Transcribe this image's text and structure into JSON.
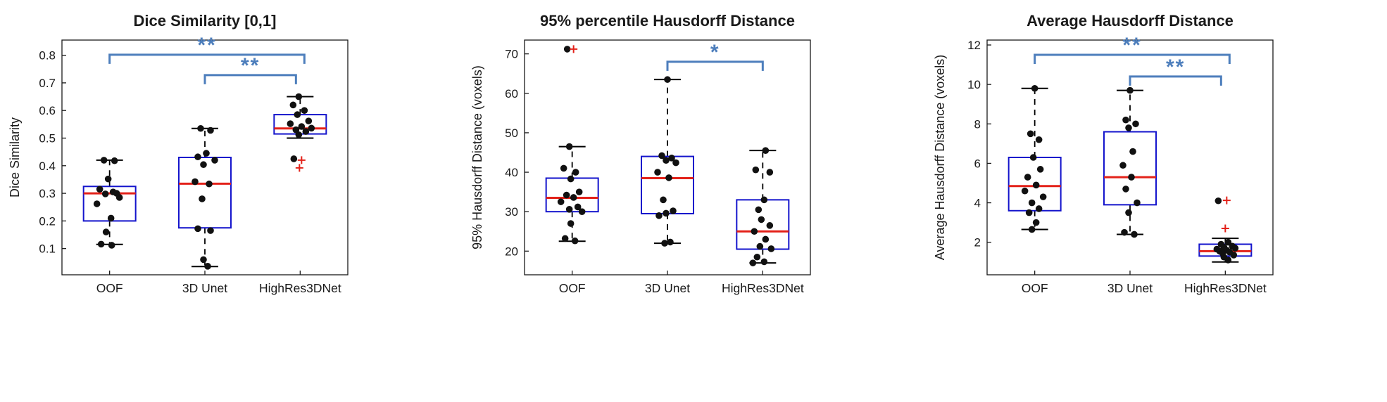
{
  "figure": {
    "background": "#ffffff"
  },
  "colors": {
    "box": "#1414cc",
    "median": "#e32119",
    "whisker": "#000000",
    "cap": "#000000",
    "point": "#111111",
    "outlier": "#e32119",
    "significance": "#4d7ebc",
    "axis": "#1a1a1a",
    "text": "#1a1a1a"
  },
  "chart_data": [
    {
      "type": "boxplot",
      "title": "Dice Similarity [0,1]",
      "ylabel": "Dice Similarity",
      "categories": [
        "OOF",
        "3D Unet",
        "HighRes3DNet"
      ],
      "ylim": [
        0.005,
        0.855
      ],
      "yticks": [
        0.1,
        0.2,
        0.3,
        0.4,
        0.5,
        0.6,
        0.7,
        0.8
      ],
      "ytick_labels": [
        "0.1",
        "0.2",
        "0.3",
        "0.4",
        "0.5",
        "0.6",
        "0.7",
        "0.8"
      ],
      "grid": false,
      "legend": "none",
      "boxes": [
        {
          "label": "OOF",
          "whislo": 0.115,
          "q1": 0.2,
          "med": 0.3,
          "q3": 0.325,
          "whishi": 0.42,
          "points": [
            [
              -8,
              0.42
            ],
            [
              7,
              0.418
            ],
            [
              -2,
              0.352
            ],
            [
              -14,
              0.315
            ],
            [
              5,
              0.305
            ],
            [
              -6,
              0.298
            ],
            [
              14,
              0.285
            ],
            [
              10,
              0.3
            ],
            [
              -18,
              0.262
            ],
            [
              2,
              0.21
            ],
            [
              -5,
              0.16
            ],
            [
              -12,
              0.116
            ],
            [
              3,
              0.112
            ]
          ],
          "outliers": []
        },
        {
          "label": "3D Unet",
          "whislo": 0.035,
          "q1": 0.175,
          "med": 0.335,
          "q3": 0.43,
          "whishi": 0.535,
          "points": [
            [
              -6,
              0.535
            ],
            [
              8,
              0.528
            ],
            [
              2,
              0.445
            ],
            [
              -10,
              0.432
            ],
            [
              14,
              0.42
            ],
            [
              -2,
              0.404
            ],
            [
              -14,
              0.342
            ],
            [
              6,
              0.334
            ],
            [
              -4,
              0.28
            ],
            [
              -10,
              0.172
            ],
            [
              8,
              0.165
            ],
            [
              -2,
              0.06
            ],
            [
              4,
              0.036
            ]
          ],
          "outliers": []
        },
        {
          "label": "HighRes3DNet",
          "whislo": 0.5,
          "q1": 0.515,
          "med": 0.535,
          "q3": 0.585,
          "whishi": 0.65,
          "points": [
            [
              -2,
              0.65
            ],
            [
              -10,
              0.62
            ],
            [
              6,
              0.6
            ],
            [
              -4,
              0.585
            ],
            [
              12,
              0.562
            ],
            [
              -14,
              0.552
            ],
            [
              2,
              0.542
            ],
            [
              16,
              0.536
            ],
            [
              -6,
              0.53
            ],
            [
              8,
              0.524
            ],
            [
              -2,
              0.512
            ],
            [
              -9,
              0.425
            ]
          ],
          "outliers": [
            [
              2,
              0.42
            ],
            [
              -1,
              0.392
            ]
          ]
        }
      ],
      "brackets": [
        {
          "from": 0,
          "to": 2,
          "to_off": 6,
          "y": 0.802,
          "label": "**"
        },
        {
          "from": 1,
          "to": 2,
          "to_off": -6,
          "y": 0.728,
          "label": "**"
        }
      ]
    },
    {
      "type": "boxplot",
      "title": "95% percentile Hausdorff Distance",
      "ylabel": "95% Hausdorff Distance (voxels)",
      "categories": [
        "OOF",
        "3D Unet",
        "HighRes3DNet"
      ],
      "ylim": [
        14,
        73.5
      ],
      "yticks": [
        20,
        30,
        40,
        50,
        60,
        70
      ],
      "ytick_labels": [
        "20",
        "30",
        "40",
        "50",
        "60",
        "70"
      ],
      "grid": false,
      "legend": "none",
      "boxes": [
        {
          "label": "OOF",
          "whislo": 22.5,
          "q1": 30.0,
          "med": 33.5,
          "q3": 38.5,
          "whishi": 46.5,
          "points": [
            [
              -7,
              71.2
            ],
            [
              -4,
              46.5
            ],
            [
              -12,
              41.0
            ],
            [
              5,
              40.0
            ],
            [
              -2,
              38.3
            ],
            [
              10,
              35.0
            ],
            [
              -8,
              34.2
            ],
            [
              2,
              33.6
            ],
            [
              -16,
              32.5
            ],
            [
              8,
              31.2
            ],
            [
              -4,
              30.6
            ],
            [
              14,
              30.0
            ],
            [
              -2,
              27.0
            ],
            [
              -10,
              23.2
            ],
            [
              4,
              22.6
            ]
          ],
          "outliers": [
            [
              2,
              71.2
            ]
          ]
        },
        {
          "label": "3D Unet",
          "whislo": 22.0,
          "q1": 29.5,
          "med": 38.5,
          "q3": 44.0,
          "whishi": 63.5,
          "points": [
            [
              0,
              63.5
            ],
            [
              -8,
              44.2
            ],
            [
              6,
              43.6
            ],
            [
              -2,
              43.0
            ],
            [
              12,
              42.4
            ],
            [
              -14,
              40.0
            ],
            [
              2,
              38.6
            ],
            [
              -6,
              33.0
            ],
            [
              8,
              30.2
            ],
            [
              -2,
              29.6
            ],
            [
              -12,
              29.0
            ],
            [
              4,
              22.3
            ],
            [
              -4,
              22.0
            ]
          ],
          "outliers": []
        },
        {
          "label": "HighRes3DNet",
          "whislo": 17.0,
          "q1": 20.5,
          "med": 25.0,
          "q3": 33.0,
          "whishi": 45.5,
          "points": [
            [
              4,
              45.5
            ],
            [
              -10,
              40.6
            ],
            [
              10,
              40.0
            ],
            [
              2,
              33.0
            ],
            [
              -6,
              30.5
            ],
            [
              -2,
              28.0
            ],
            [
              10,
              26.5
            ],
            [
              -12,
              25.0
            ],
            [
              4,
              23.0
            ],
            [
              -4,
              21.2
            ],
            [
              12,
              20.6
            ],
            [
              -8,
              18.5
            ],
            [
              2,
              17.3
            ],
            [
              -14,
              17.0
            ]
          ],
          "outliers": []
        }
      ],
      "brackets": [
        {
          "from": 1,
          "to": 2,
          "y": 68.0,
          "label": "*"
        }
      ]
    },
    {
      "type": "boxplot",
      "title": "Average Hausdorff Distance",
      "ylabel": "Average Hausdorff Distance (voxels)",
      "categories": [
        "OOF",
        "3D Unet",
        "HighRes3DNet"
      ],
      "ylim": [
        0.35,
        12.25
      ],
      "yticks": [
        2,
        4,
        6,
        8,
        10,
        12
      ],
      "ytick_labels": [
        "2",
        "4",
        "6",
        "8",
        "10",
        "12"
      ],
      "grid": false,
      "legend": "none",
      "boxes": [
        {
          "label": "OOF",
          "whislo": 2.65,
          "q1": 3.6,
          "med": 4.85,
          "q3": 6.3,
          "whishi": 9.8,
          "points": [
            [
              0,
              9.8
            ],
            [
              -6,
              7.5
            ],
            [
              6,
              7.2
            ],
            [
              -2,
              6.3
            ],
            [
              8,
              5.7
            ],
            [
              -10,
              5.3
            ],
            [
              2,
              4.9
            ],
            [
              -14,
              4.6
            ],
            [
              12,
              4.3
            ],
            [
              -4,
              4.0
            ],
            [
              6,
              3.7
            ],
            [
              -8,
              3.5
            ],
            [
              2,
              3.0
            ],
            [
              -4,
              2.65
            ]
          ],
          "outliers": []
        },
        {
          "label": "3D Unet",
          "whislo": 2.4,
          "q1": 3.9,
          "med": 5.3,
          "q3": 7.6,
          "whishi": 9.7,
          "points": [
            [
              0,
              9.7
            ],
            [
              -6,
              8.2
            ],
            [
              8,
              8.0
            ],
            [
              -2,
              7.8
            ],
            [
              4,
              6.6
            ],
            [
              -10,
              5.9
            ],
            [
              2,
              5.3
            ],
            [
              -6,
              4.7
            ],
            [
              10,
              4.0
            ],
            [
              -2,
              3.5
            ],
            [
              -8,
              2.5
            ],
            [
              6,
              2.4
            ]
          ],
          "outliers": []
        },
        {
          "label": "HighRes3DNet",
          "whislo": 1.0,
          "q1": 1.3,
          "med": 1.55,
          "q3": 1.9,
          "whishi": 2.2,
          "points": [
            [
              -10,
              4.1
            ],
            [
              4,
              2.0
            ],
            [
              -6,
              1.9
            ],
            [
              10,
              1.8
            ],
            [
              -2,
              1.75
            ],
            [
              14,
              1.7
            ],
            [
              -12,
              1.65
            ],
            [
              2,
              1.6
            ],
            [
              -8,
              1.55
            ],
            [
              6,
              1.5
            ],
            [
              -4,
              1.45
            ],
            [
              12,
              1.35
            ],
            [
              -2,
              1.25
            ],
            [
              4,
              1.1
            ]
          ],
          "outliers": [
            [
              2,
              4.12
            ],
            [
              0,
              2.7
            ]
          ]
        }
      ],
      "brackets": [
        {
          "from": 0,
          "to": 2,
          "to_off": 6,
          "y": 11.5,
          "label": "**"
        },
        {
          "from": 1,
          "to": 2,
          "to_off": -6,
          "y": 10.4,
          "label": "**"
        }
      ]
    }
  ]
}
